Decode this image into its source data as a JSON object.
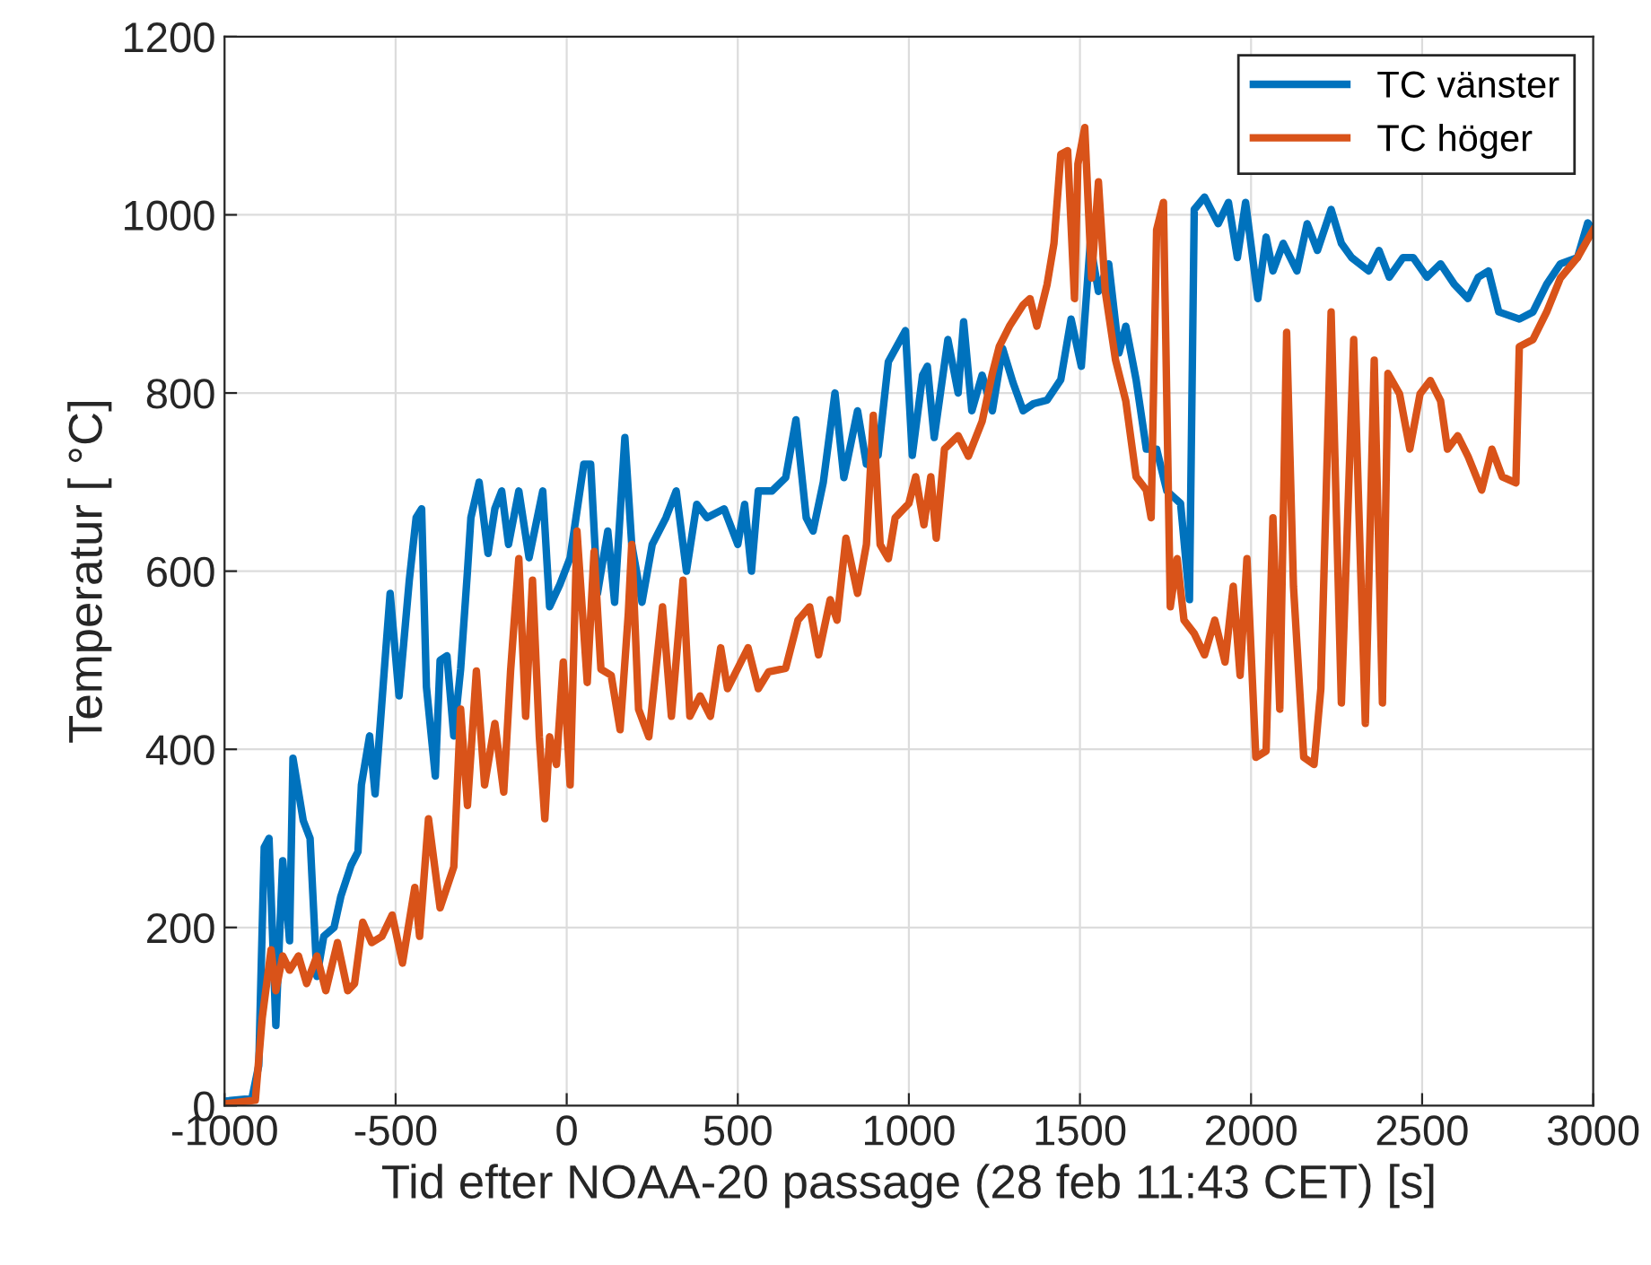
{
  "chart_data": {
    "type": "line",
    "xlabel": "Tid efter NOAA-20 passage (28 feb 11:43 CET) [s]",
    "ylabel": "Temperatur [ °C]",
    "xlim": [
      -1000,
      3000
    ],
    "ylim": [
      0,
      1200
    ],
    "xticks": [
      -1000,
      -500,
      0,
      500,
      1000,
      1500,
      2000,
      2500,
      3000
    ],
    "yticks": [
      0,
      200,
      400,
      600,
      800,
      1000,
      1200
    ],
    "grid": true,
    "legend": "top right",
    "marker": "none",
    "line_style": "solid",
    "series": [
      {
        "name": "TC vänster",
        "color": "#0072bd",
        "x": [
          -1000,
          -920,
          -900,
          -884,
          -870,
          -850,
          -830,
          -810,
          -800,
          -770,
          -750,
          -730,
          -710,
          -680,
          -660,
          -630,
          -610,
          -600,
          -576,
          -560,
          -530,
          -516,
          -490,
          -460,
          -440,
          -424,
          -410,
          -384,
          -370,
          -350,
          -330,
          -310,
          -290,
          -280,
          -256,
          -230,
          -210,
          -190,
          -170,
          -140,
          -110,
          -70,
          -50,
          -20,
          10,
          50,
          70,
          90,
          120,
          140,
          170,
          190,
          220,
          250,
          290,
          320,
          350,
          380,
          410,
          460,
          500,
          520,
          540,
          560,
          600,
          640,
          670,
          700,
          720,
          750,
          784,
          810,
          850,
          876,
          910,
          940,
          990,
          1010,
          1040,
          1054,
          1074,
          1114,
          1144,
          1160,
          1184,
          1214,
          1244,
          1274,
          1304,
          1334,
          1364,
          1404,
          1444,
          1474,
          1504,
          1530,
          1554,
          1584,
          1614,
          1634,
          1664,
          1694,
          1724,
          1754,
          1794,
          1820,
          1834,
          1864,
          1904,
          1934,
          1960,
          1984,
          2020,
          2044,
          2064,
          2094,
          2134,
          2164,
          2194,
          2234,
          2264,
          2294,
          2344,
          2374,
          2404,
          2444,
          2474,
          2514,
          2554,
          2594,
          2634,
          2664,
          2694,
          2724,
          2784,
          2824,
          2864,
          2904,
          2954,
          2984,
          3000
        ],
        "values": [
          5,
          8,
          45,
          290,
          300,
          90,
          275,
          185,
          390,
          320,
          300,
          145,
          190,
          200,
          235,
          270,
          285,
          360,
          415,
          350,
          505,
          575,
          460,
          590,
          660,
          670,
          470,
          370,
          500,
          505,
          415,
          490,
          600,
          660,
          700,
          620,
          670,
          690,
          630,
          690,
          615,
          690,
          560,
          585,
          615,
          720,
          720,
          575,
          645,
          565,
          750,
          630,
          565,
          630,
          660,
          690,
          600,
          675,
          660,
          670,
          630,
          675,
          600,
          690,
          690,
          705,
          770,
          660,
          645,
          700,
          800,
          705,
          780,
          720,
          730,
          835,
          870,
          730,
          820,
          830,
          750,
          860,
          800,
          880,
          780,
          820,
          780,
          850,
          812,
          780,
          788,
          792,
          815,
          883,
          830,
          968,
          914,
          945,
          845,
          875,
          815,
          737,
          737,
          690,
          676,
          568,
          1006,
          1020,
          990,
          1014,
          952,
          1014,
          906,
          975,
          937,
          968,
          937,
          990,
          960,
          1006,
          968,
          952,
          937,
          960,
          930,
          952,
          952,
          930,
          945,
          922,
          906,
          930,
          937,
          891,
          883,
          891,
          922,
          945,
          952,
          991,
          983
        ]
      },
      {
        "name": "TC höger",
        "color": "#d95319",
        "x": [
          -1000,
          -910,
          -890,
          -864,
          -850,
          -830,
          -810,
          -784,
          -760,
          -730,
          -704,
          -670,
          -640,
          -620,
          -596,
          -570,
          -540,
          -510,
          -480,
          -444,
          -430,
          -404,
          -370,
          -330,
          -310,
          -290,
          -264,
          -240,
          -210,
          -184,
          -164,
          -140,
          -120,
          -100,
          -80,
          -64,
          -50,
          -30,
          -10,
          10,
          30,
          60,
          80,
          100,
          130,
          156,
          180,
          190,
          210,
          240,
          280,
          306,
          340,
          360,
          390,
          420,
          450,
          470,
          530,
          560,
          590,
          640,
          676,
          710,
          736,
          770,
          790,
          816,
          850,
          876,
          896,
          916,
          940,
          960,
          1000,
          1020,
          1044,
          1064,
          1080,
          1104,
          1144,
          1174,
          1214,
          1244,
          1264,
          1294,
          1334,
          1354,
          1374,
          1404,
          1424,
          1444,
          1464,
          1484,
          1494,
          1514,
          1534,
          1554,
          1574,
          1604,
          1634,
          1664,
          1694,
          1708,
          1724,
          1744,
          1764,
          1784,
          1804,
          1834,
          1864,
          1894,
          1924,
          1948,
          1968,
          1988,
          2014,
          2044,
          2064,
          2084,
          2104,
          2124,
          2154,
          2184,
          2204,
          2234,
          2264,
          2300,
          2334,
          2360,
          2384,
          2400,
          2434,
          2464,
          2494,
          2524,
          2554,
          2574,
          2604,
          2634,
          2674,
          2704,
          2734,
          2774,
          2784,
          2824,
          2864,
          2904,
          2954,
          2988,
          3000
        ],
        "values": [
          2,
          6,
          98,
          175,
          129,
          168,
          152,
          168,
          137,
          168,
          129,
          183,
          129,
          137,
          206,
          183,
          190,
          214,
          160,
          245,
          190,
          322,
          222,
          268,
          445,
          337,
          488,
          360,
          429,
          352,
          488,
          614,
          437,
          590,
          414,
          322,
          414,
          383,
          498,
          360,
          645,
          475,
          622,
          490,
          483,
          422,
          552,
          630,
          445,
          414,
          560,
          437,
          590,
          437,
          460,
          437,
          514,
          468,
          514,
          468,
          487,
          491,
          545,
          560,
          506,
          568,
          545,
          637,
          575,
          630,
          775,
          630,
          614,
          660,
          676,
          706,
          652,
          706,
          637,
          737,
          752,
          729,
          768,
          822,
          852,
          875,
          899,
          906,
          875,
          922,
          968,
          1068,
          1072,
          906,
          1057,
          1098,
          929,
          1037,
          914,
          837,
          791,
          706,
          691,
          660,
          983,
          1014,
          560,
          614,
          545,
          530,
          506,
          545,
          498,
          583,
          483,
          614,
          391,
          398,
          660,
          445,
          868,
          583,
          391,
          383,
          468,
          891,
          452,
          860,
          429,
          837,
          452,
          822,
          799,
          737,
          799,
          814,
          791,
          737,
          752,
          729,
          691,
          737,
          706,
          699,
          852,
          860,
          891,
          929,
          952,
          975,
          983
        ]
      }
    ]
  }
}
